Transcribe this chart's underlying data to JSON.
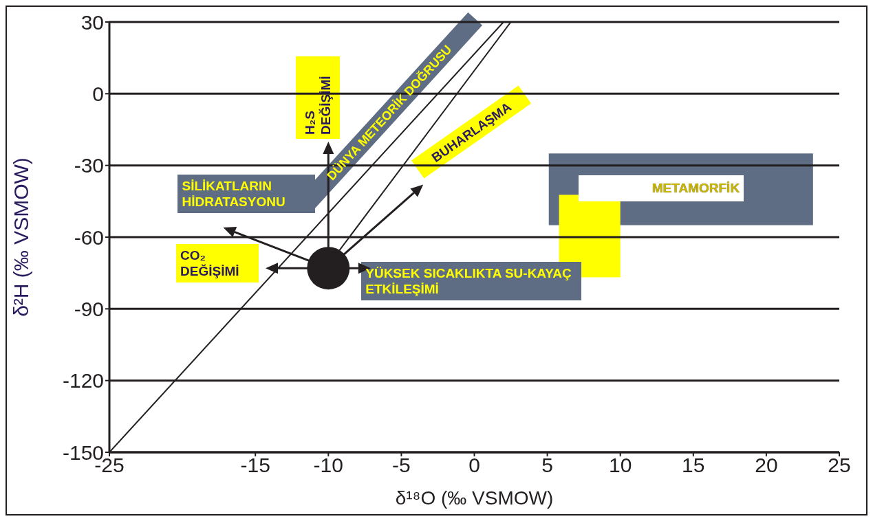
{
  "chart_data": {
    "type": "line",
    "xlabel": "δ¹⁸O (‰ VSMOW)",
    "ylabel": "δ²H (‰ VSMOW)",
    "xlim": [
      -25,
      25
    ],
    "xticks": [
      -25,
      -15,
      -10,
      -5,
      0,
      5,
      10,
      15,
      20,
      25
    ],
    "ylim": [
      -150,
      30
    ],
    "yticks": [
      -150,
      -120,
      -90,
      -60,
      -30,
      0,
      30
    ],
    "grid": "y",
    "series": [
      {
        "color": "#231f20",
        "x": [
          -25,
          2.0
        ],
        "values": [
          -150,
          30
        ]
      },
      {
        "color": "#231f20",
        "x": [
          -9.3,
          2.5
        ],
        "values": [
          -66,
          30
        ]
      },
      {
        "type": "scatter",
        "color": "#231f20",
        "marker": "circle",
        "x": [
          -10
        ],
        "values": [
          -73
        ]
      }
    ],
    "annotations": [
      "H₂S DEĞİŞİMİ",
      {
        "text": "DÜNYA METEORİK DOĞRUSU",
        "x": -4,
        "y": -23
      },
      "BUHARLAŞMA",
      "SİLİKATLARIN HİDRATASYONU",
      "CO₂ DEĞİŞİMİ",
      "YÜKSEK SICAKLIKTA SU-KAYAÇ ETKİLEŞİMİ",
      "METAMORFİK"
    ]
  }
}
